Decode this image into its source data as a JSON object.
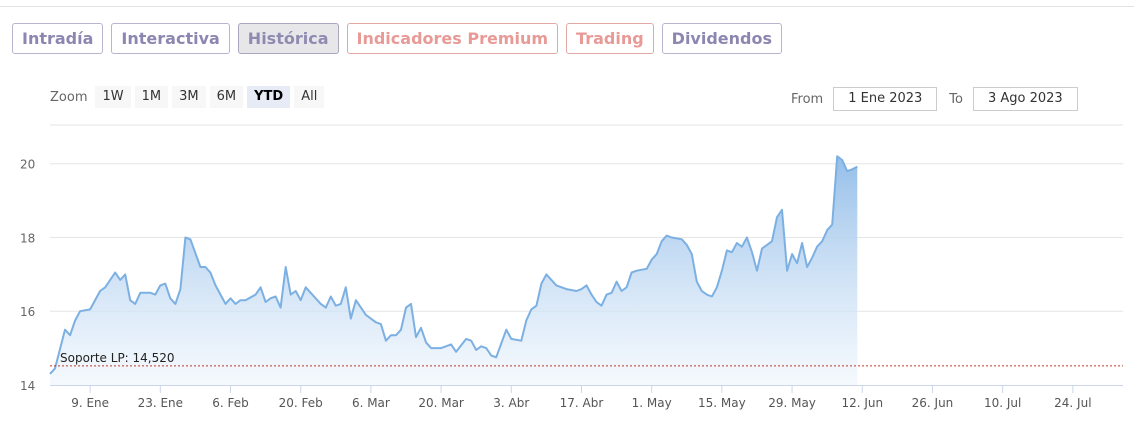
{
  "tabs": [
    {
      "label": "Intradía",
      "style": "normal"
    },
    {
      "label": "Interactiva",
      "style": "normal"
    },
    {
      "label": "Histórica",
      "style": "active"
    },
    {
      "label": "Indicadores Premium",
      "style": "premium"
    },
    {
      "label": "Trading",
      "style": "premium"
    },
    {
      "label": "Dividendos",
      "style": "normal"
    }
  ],
  "zoom": {
    "label": "Zoom",
    "options": [
      "1W",
      "1M",
      "3M",
      "6M",
      "YTD",
      "All"
    ],
    "selected": "YTD"
  },
  "range": {
    "from_label": "From",
    "from_value": "1 Ene 2023",
    "to_label": "To",
    "to_value": "3 Ago 2023"
  },
  "colors": {
    "line": "#7cb0e2",
    "fill_top": "#8fbbe8",
    "fill_bottom": "#eef5fc",
    "support_line": "#c0392b",
    "tab_text": "#8c87b0",
    "tab_premium_text": "#e89a97"
  },
  "chart_data": {
    "type": "area",
    "x_ticks": [
      {
        "label": "9. Ene",
        "day": 9
      },
      {
        "label": "23. Ene",
        "day": 23
      },
      {
        "label": "6. Feb",
        "day": 37
      },
      {
        "label": "20. Feb",
        "day": 51
      },
      {
        "label": "6. Mar",
        "day": 65
      },
      {
        "label": "20. Mar",
        "day": 79
      },
      {
        "label": "3. Abr",
        "day": 93
      },
      {
        "label": "17. Abr",
        "day": 107
      },
      {
        "label": "1. May",
        "day": 121
      },
      {
        "label": "15. May",
        "day": 135
      },
      {
        "label": "29. May",
        "day": 149
      },
      {
        "label": "12. Jun",
        "day": 163
      },
      {
        "label": "26. Jun",
        "day": 177
      },
      {
        "label": "10. Jul",
        "day": 191
      },
      {
        "label": "24. Jul",
        "day": 205
      }
    ],
    "y_ticks": [
      14,
      16,
      18,
      20
    ],
    "ylim": [
      14,
      21.05
    ],
    "xlim": [
      1,
      215
    ],
    "support": {
      "label": "Soporte LP: 14,520",
      "value": 14.52
    },
    "series": [
      {
        "values": [
          [
            1,
            14.3
          ],
          [
            2,
            14.45
          ],
          [
            4,
            15.5
          ],
          [
            5,
            15.35
          ],
          [
            6,
            15.75
          ],
          [
            7,
            16.0
          ],
          [
            9,
            16.05
          ],
          [
            11,
            16.55
          ],
          [
            12,
            16.65
          ],
          [
            14,
            17.05
          ],
          [
            15,
            16.85
          ],
          [
            16,
            17.0
          ],
          [
            17,
            16.3
          ],
          [
            18,
            16.2
          ],
          [
            19,
            16.5
          ],
          [
            21,
            16.5
          ],
          [
            22,
            16.45
          ],
          [
            23,
            16.7
          ],
          [
            24,
            16.75
          ],
          [
            25,
            16.35
          ],
          [
            26,
            16.2
          ],
          [
            27,
            16.6
          ],
          [
            28,
            18.0
          ],
          [
            29,
            17.95
          ],
          [
            31,
            17.2
          ],
          [
            32,
            17.2
          ],
          [
            33,
            17.05
          ],
          [
            34,
            16.7
          ],
          [
            36,
            16.2
          ],
          [
            37,
            16.35
          ],
          [
            38,
            16.2
          ],
          [
            39,
            16.3
          ],
          [
            40,
            16.3
          ],
          [
            42,
            16.45
          ],
          [
            43,
            16.65
          ],
          [
            44,
            16.25
          ],
          [
            45,
            16.35
          ],
          [
            46,
            16.4
          ],
          [
            47,
            16.1
          ],
          [
            48,
            17.2
          ],
          [
            49,
            16.45
          ],
          [
            50,
            16.55
          ],
          [
            51,
            16.3
          ],
          [
            52,
            16.65
          ],
          [
            53,
            16.5
          ],
          [
            55,
            16.2
          ],
          [
            56,
            16.1
          ],
          [
            57,
            16.4
          ],
          [
            58,
            16.15
          ],
          [
            59,
            16.2
          ],
          [
            60,
            16.65
          ],
          [
            61,
            15.8
          ],
          [
            62,
            16.3
          ],
          [
            63,
            16.1
          ],
          [
            64,
            15.9
          ],
          [
            66,
            15.7
          ],
          [
            67,
            15.65
          ],
          [
            68,
            15.2
          ],
          [
            69,
            15.35
          ],
          [
            70,
            15.35
          ],
          [
            71,
            15.5
          ],
          [
            72,
            16.1
          ],
          [
            73,
            16.2
          ],
          [
            74,
            15.3
          ],
          [
            75,
            15.55
          ],
          [
            76,
            15.15
          ],
          [
            77,
            15.0
          ],
          [
            79,
            15.0
          ],
          [
            81,
            15.1
          ],
          [
            82,
            14.9
          ],
          [
            84,
            15.25
          ],
          [
            85,
            15.2
          ],
          [
            86,
            14.95
          ],
          [
            87,
            15.05
          ],
          [
            88,
            15.0
          ],
          [
            89,
            14.8
          ],
          [
            90,
            14.75
          ],
          [
            92,
            15.5
          ],
          [
            93,
            15.25
          ],
          [
            95,
            15.2
          ],
          [
            96,
            15.75
          ],
          [
            97,
            16.05
          ],
          [
            98,
            16.15
          ],
          [
            99,
            16.75
          ],
          [
            100,
            17.0
          ],
          [
            101,
            16.85
          ],
          [
            102,
            16.7
          ],
          [
            104,
            16.6
          ],
          [
            106,
            16.55
          ],
          [
            107,
            16.6
          ],
          [
            108,
            16.7
          ],
          [
            109,
            16.45
          ],
          [
            110,
            16.25
          ],
          [
            111,
            16.15
          ],
          [
            112,
            16.45
          ],
          [
            113,
            16.5
          ],
          [
            114,
            16.8
          ],
          [
            115,
            16.55
          ],
          [
            116,
            16.65
          ],
          [
            117,
            17.05
          ],
          [
            118,
            17.1
          ],
          [
            120,
            17.15
          ],
          [
            121,
            17.4
          ],
          [
            122,
            17.55
          ],
          [
            123,
            17.9
          ],
          [
            124,
            18.05
          ],
          [
            125,
            18.0
          ],
          [
            127,
            17.95
          ],
          [
            128,
            17.8
          ],
          [
            129,
            17.55
          ],
          [
            130,
            16.8
          ],
          [
            131,
            16.55
          ],
          [
            132,
            16.45
          ],
          [
            133,
            16.4
          ],
          [
            134,
            16.65
          ],
          [
            135,
            17.1
          ],
          [
            136,
            17.65
          ],
          [
            137,
            17.6
          ],
          [
            138,
            17.85
          ],
          [
            139,
            17.75
          ],
          [
            140,
            18.0
          ],
          [
            141,
            17.6
          ],
          [
            142,
            17.1
          ],
          [
            143,
            17.7
          ],
          [
            144,
            17.8
          ],
          [
            145,
            17.9
          ],
          [
            146,
            18.55
          ],
          [
            147,
            18.75
          ],
          [
            148,
            17.1
          ],
          [
            149,
            17.55
          ],
          [
            150,
            17.3
          ],
          [
            151,
            17.85
          ],
          [
            152,
            17.2
          ],
          [
            153,
            17.45
          ],
          [
            154,
            17.75
          ],
          [
            155,
            17.9
          ],
          [
            156,
            18.2
          ],
          [
            157,
            18.35
          ],
          [
            158,
            20.2
          ],
          [
            159,
            20.1
          ],
          [
            160,
            19.8
          ],
          [
            161,
            19.85
          ],
          [
            162,
            19.92
          ]
        ]
      }
    ]
  }
}
